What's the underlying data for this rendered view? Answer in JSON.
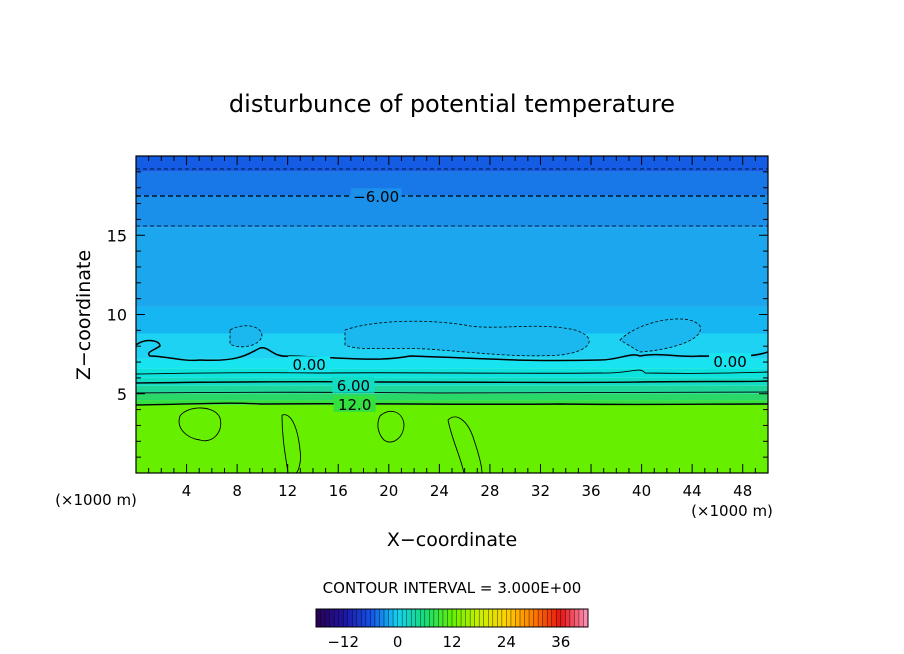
{
  "chart_data": {
    "type": "heatmap",
    "title": "disturbunce of potential temperature",
    "xlabel": "X−coordinate",
    "ylabel": "Z−coordinate",
    "x_unit_left": "(×1000 m)",
    "x_unit_right": "(×1000 m)",
    "xlim": [
      0,
      50
    ],
    "ylim": [
      0,
      20
    ],
    "x_ticks": [
      "4",
      "8",
      "12",
      "16",
      "20",
      "24",
      "28",
      "32",
      "36",
      "40",
      "44",
      "48"
    ],
    "y_ticks": [
      "5",
      "10",
      "15"
    ],
    "x_tick_values": [
      4,
      8,
      12,
      16,
      20,
      24,
      28,
      32,
      36,
      40,
      44,
      48
    ],
    "y_tick_values": [
      5,
      10,
      15
    ],
    "contour_interval_text": "CONTOUR INTERVAL = 3.000E+00",
    "contour_interval": 3.0,
    "contour_labels": [
      {
        "text": "−6.00",
        "x": 19.0,
        "z": 17.4
      },
      {
        "text": "0.00",
        "x": 13.7,
        "z": 6.8
      },
      {
        "text": "0.00",
        "x": 47.0,
        "z": 7.0
      },
      {
        "text": "6.00",
        "x": 17.2,
        "z": 5.5
      },
      {
        "text": "12.0",
        "x": 17.3,
        "z": 4.3
      }
    ],
    "bands": [
      {
        "z0": 0.0,
        "z1": 4.3,
        "value": 13.5,
        "color": "#66f000"
      },
      {
        "z0": 4.3,
        "z1": 4.6,
        "value": 12.0,
        "color": "#33e040"
      },
      {
        "z0": 4.6,
        "z1": 5.0,
        "value": 10.5,
        "color": "#2ad86a"
      },
      {
        "z0": 5.0,
        "z1": 5.5,
        "value": 9.0,
        "color": "#1ed69a"
      },
      {
        "z0": 5.5,
        "z1": 6.0,
        "value": 7.5,
        "color": "#12dcc4"
      },
      {
        "z0": 6.0,
        "z1": 6.6,
        "value": 6.0,
        "color": "#0ee2dc"
      },
      {
        "z0": 6.6,
        "z1": 7.2,
        "value": 3.0,
        "color": "#18e4f0"
      },
      {
        "z0": 7.2,
        "z1": 8.8,
        "value": 0.0,
        "color": "#1ed2f4"
      },
      {
        "z0": 8.8,
        "z1": 10.5,
        "value": -1.5,
        "color": "#15b6f2"
      },
      {
        "z0": 10.5,
        "z1": 15.5,
        "value": -3.0,
        "color": "#1ca6ee"
      },
      {
        "z0": 15.5,
        "z1": 17.5,
        "value": -4.5,
        "color": "#1a90ea"
      },
      {
        "z0": 17.5,
        "z1": 19.0,
        "value": -6.0,
        "color": "#1878e8"
      },
      {
        "z0": 19.0,
        "z1": 20.0,
        "value": -7.5,
        "color": "#145ce4"
      }
    ],
    "colorbar": {
      "vmin": -18,
      "vmax": 42,
      "tick_labels": [
        "−12",
        "0",
        "12",
        "24",
        "36"
      ],
      "tick_values": [
        -12,
        0,
        12,
        24,
        36
      ]
    }
  }
}
